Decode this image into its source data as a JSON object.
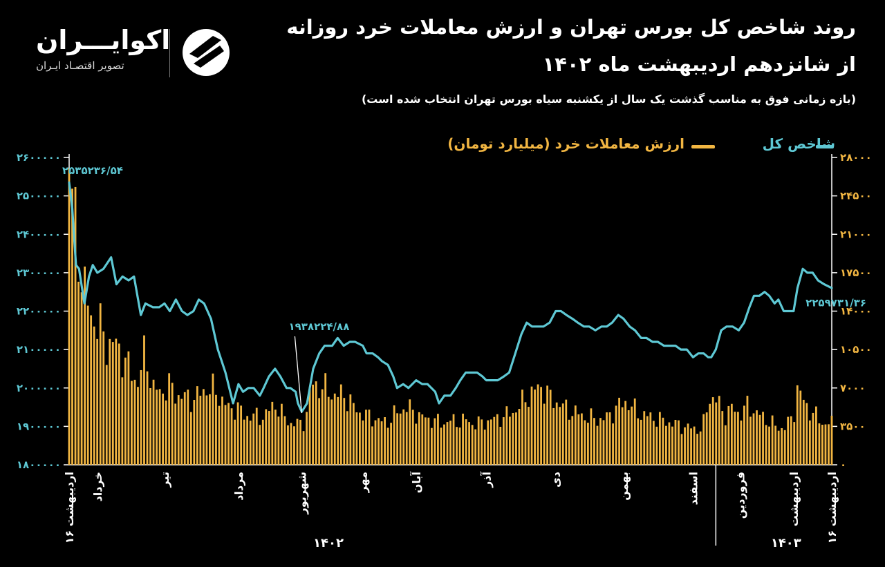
{
  "title_line1": "روند شاخص کل بورس تهران و ارزش معاملات خرد روزانه",
  "title_line2": "از شانزدهم اردیبهشت ماه ۱۴۰۲",
  "subtitle": "(بازه زمانی فوق به مناسب گذشت یک سال از یکشنبه سیاه بورس تهران انتخاب شده است)",
  "brand": {
    "name": "اکوایـــران",
    "tagline": "تصویر اقتصـاد ایـران",
    "logo_icon": "ecoiran-logo-icon"
  },
  "colors": {
    "index": "#5ec8d4",
    "volume": "#f2b642",
    "background": "#000000"
  },
  "chart_data": {
    "type": "bar+line",
    "legend": [
      {
        "name": "شاخص کل",
        "series": "index",
        "type": "line"
      },
      {
        "name": "ارزش معاملات خرد (میلیارد تومان)",
        "series": "volume",
        "type": "bar"
      }
    ],
    "left_axis": {
      "range": [
        1800000,
        2600000
      ],
      "ticks": [
        "1800000",
        "1900000",
        "2000000",
        "2100000",
        "2200000",
        "2300000",
        "2400000",
        "2500000",
        "2600000"
      ]
    },
    "right_axis": {
      "range": [
        0,
        28000
      ],
      "ticks": [
        "0",
        "3500",
        "7000",
        "10500",
        "14000",
        "17500",
        "21000",
        "24500",
        "28000"
      ]
    },
    "x_months": [
      {
        "label": "۱۶ اردیبهشت",
        "pos": 0.0
      },
      {
        "label": "خرداد",
        "pos": 0.037
      },
      {
        "label": "تیر",
        "pos": 0.125
      },
      {
        "label": "مرداد",
        "pos": 0.222
      },
      {
        "label": "شهریور",
        "pos": 0.305
      },
      {
        "label": "مهر",
        "pos": 0.385
      },
      {
        "label": "آبان",
        "pos": 0.455
      },
      {
        "label": "آذر",
        "pos": 0.547
      },
      {
        "label": "دی",
        "pos": 0.638
      },
      {
        "label": "بهمن",
        "pos": 0.727
      },
      {
        "label": "اسفند",
        "pos": 0.818
      },
      {
        "label": "فروردین",
        "pos": 0.88
      },
      {
        "label": "اردیبهشت",
        "pos": 0.95
      },
      {
        "label": "۱۶ اردیبهشت",
        "pos": 1.0
      }
    ],
    "year_labels": [
      {
        "label": "۱۴۰۲",
        "pos": 0.34
      },
      {
        "label": "۱۴۰۳",
        "pos": 0.94
      }
    ],
    "year_divider_pos": 0.848,
    "annotations": [
      {
        "label": "۲۵۳۵۲۳۶/۵۴",
        "series": "index",
        "pos": 0.0,
        "value": 2535236.54
      },
      {
        "label": "۱۹۳۸۲۲۴/۸۸",
        "series": "index",
        "pos": 0.305,
        "value": 1938224.88
      },
      {
        "label": "۲۲۵۹۷۳۱/۳۶",
        "series": "index",
        "pos": 1.0,
        "value": 2259731.36
      }
    ],
    "index_series": [
      [
        0.0,
        2535000
      ],
      [
        0.004,
        2470000
      ],
      [
        0.009,
        2320000
      ],
      [
        0.013,
        2310000
      ],
      [
        0.02,
        2220000
      ],
      [
        0.026,
        2290000
      ],
      [
        0.031,
        2320000
      ],
      [
        0.037,
        2300000
      ],
      [
        0.045,
        2310000
      ],
      [
        0.055,
        2340000
      ],
      [
        0.062,
        2270000
      ],
      [
        0.07,
        2290000
      ],
      [
        0.078,
        2280000
      ],
      [
        0.085,
        2290000
      ],
      [
        0.094,
        2190000
      ],
      [
        0.1,
        2220000
      ],
      [
        0.11,
        2210000
      ],
      [
        0.118,
        2210000
      ],
      [
        0.125,
        2220000
      ],
      [
        0.132,
        2200000
      ],
      [
        0.14,
        2230000
      ],
      [
        0.148,
        2200000
      ],
      [
        0.155,
        2190000
      ],
      [
        0.163,
        2200000
      ],
      [
        0.17,
        2230000
      ],
      [
        0.177,
        2220000
      ],
      [
        0.186,
        2180000
      ],
      [
        0.195,
        2100000
      ],
      [
        0.2,
        2070000
      ],
      [
        0.205,
        2040000
      ],
      [
        0.21,
        2000000
      ],
      [
        0.215,
        1960000
      ],
      [
        0.222,
        2010000
      ],
      [
        0.228,
        1990000
      ],
      [
        0.235,
        2000000
      ],
      [
        0.242,
        2000000
      ],
      [
        0.25,
        1980000
      ],
      [
        0.255,
        2000000
      ],
      [
        0.262,
        2030000
      ],
      [
        0.27,
        2050000
      ],
      [
        0.277,
        2030000
      ],
      [
        0.285,
        2000000
      ],
      [
        0.29,
        2000000
      ],
      [
        0.297,
        1990000
      ],
      [
        0.3,
        1960000
      ],
      [
        0.305,
        1938000
      ],
      [
        0.312,
        1960000
      ],
      [
        0.32,
        2050000
      ],
      [
        0.328,
        2090000
      ],
      [
        0.335,
        2110000
      ],
      [
        0.345,
        2110000
      ],
      [
        0.352,
        2130000
      ],
      [
        0.36,
        2110000
      ],
      [
        0.368,
        2120000
      ],
      [
        0.375,
        2120000
      ],
      [
        0.385,
        2110000
      ],
      [
        0.39,
        2090000
      ],
      [
        0.398,
        2090000
      ],
      [
        0.405,
        2080000
      ],
      [
        0.41,
        2070000
      ],
      [
        0.418,
        2060000
      ],
      [
        0.425,
        2030000
      ],
      [
        0.43,
        2000000
      ],
      [
        0.438,
        2010000
      ],
      [
        0.445,
        2000000
      ],
      [
        0.455,
        2020000
      ],
      [
        0.463,
        2010000
      ],
      [
        0.47,
        2010000
      ],
      [
        0.475,
        2000000
      ],
      [
        0.48,
        1990000
      ],
      [
        0.485,
        1960000
      ],
      [
        0.492,
        1980000
      ],
      [
        0.5,
        1980000
      ],
      [
        0.507,
        2000000
      ],
      [
        0.513,
        2020000
      ],
      [
        0.52,
        2040000
      ],
      [
        0.527,
        2040000
      ],
      [
        0.535,
        2040000
      ],
      [
        0.542,
        2030000
      ],
      [
        0.547,
        2020000
      ],
      [
        0.555,
        2020000
      ],
      [
        0.562,
        2020000
      ],
      [
        0.57,
        2030000
      ],
      [
        0.577,
        2040000
      ],
      [
        0.585,
        2090000
      ],
      [
        0.593,
        2140000
      ],
      [
        0.6,
        2170000
      ],
      [
        0.607,
        2160000
      ],
      [
        0.615,
        2160000
      ],
      [
        0.622,
        2160000
      ],
      [
        0.63,
        2170000
      ],
      [
        0.638,
        2200000
      ],
      [
        0.645,
        2200000
      ],
      [
        0.652,
        2190000
      ],
      [
        0.66,
        2180000
      ],
      [
        0.667,
        2170000
      ],
      [
        0.675,
        2160000
      ],
      [
        0.682,
        2160000
      ],
      [
        0.69,
        2150000
      ],
      [
        0.698,
        2160000
      ],
      [
        0.705,
        2160000
      ],
      [
        0.712,
        2170000
      ],
      [
        0.72,
        2190000
      ],
      [
        0.727,
        2180000
      ],
      [
        0.735,
        2160000
      ],
      [
        0.742,
        2150000
      ],
      [
        0.75,
        2130000
      ],
      [
        0.757,
        2130000
      ],
      [
        0.765,
        2120000
      ],
      [
        0.772,
        2120000
      ],
      [
        0.78,
        2110000
      ],
      [
        0.788,
        2110000
      ],
      [
        0.795,
        2110000
      ],
      [
        0.802,
        2100000
      ],
      [
        0.81,
        2100000
      ],
      [
        0.818,
        2080000
      ],
      [
        0.825,
        2090000
      ],
      [
        0.832,
        2090000
      ],
      [
        0.838,
        2080000
      ],
      [
        0.842,
        2080000
      ],
      [
        0.848,
        2100000
      ],
      [
        0.855,
        2150000
      ],
      [
        0.862,
        2160000
      ],
      [
        0.87,
        2160000
      ],
      [
        0.878,
        2150000
      ],
      [
        0.885,
        2170000
      ],
      [
        0.892,
        2210000
      ],
      [
        0.898,
        2240000
      ],
      [
        0.905,
        2240000
      ],
      [
        0.912,
        2250000
      ],
      [
        0.918,
        2240000
      ],
      [
        0.925,
        2220000
      ],
      [
        0.93,
        2230000
      ],
      [
        0.937,
        2200000
      ],
      [
        0.943,
        2200000
      ],
      [
        0.95,
        2200000
      ],
      [
        0.955,
        2260000
      ],
      [
        0.962,
        2310000
      ],
      [
        0.968,
        2300000
      ],
      [
        0.975,
        2300000
      ],
      [
        0.982,
        2280000
      ],
      [
        0.99,
        2270000
      ],
      [
        1.0,
        2260000
      ]
    ],
    "volume_series": [
      [
        0.0,
        27000
      ],
      [
        0.01,
        21000
      ],
      [
        0.02,
        15500
      ],
      [
        0.03,
        13500
      ],
      [
        0.04,
        12500
      ],
      [
        0.05,
        11000
      ],
      [
        0.06,
        11000
      ],
      [
        0.07,
        10000
      ],
      [
        0.08,
        8500
      ],
      [
        0.09,
        7500
      ],
      [
        0.1,
        10300
      ],
      [
        0.11,
        7000
      ],
      [
        0.12,
        6500
      ],
      [
        0.13,
        7300
      ],
      [
        0.14,
        6400
      ],
      [
        0.15,
        6200
      ],
      [
        0.16,
        6000
      ],
      [
        0.17,
        6300
      ],
      [
        0.18,
        7000
      ],
      [
        0.19,
        6800
      ],
      [
        0.2,
        6000
      ],
      [
        0.21,
        5000
      ],
      [
        0.22,
        5300
      ],
      [
        0.23,
        4400
      ],
      [
        0.24,
        4500
      ],
      [
        0.25,
        4300
      ],
      [
        0.26,
        4700
      ],
      [
        0.27,
        5600
      ],
      [
        0.28,
        4500
      ],
      [
        0.29,
        3800
      ],
      [
        0.3,
        3700
      ],
      [
        0.31,
        4000
      ],
      [
        0.315,
        6300
      ],
      [
        0.32,
        7500
      ],
      [
        0.33,
        7000
      ],
      [
        0.34,
        6800
      ],
      [
        0.35,
        6200
      ],
      [
        0.36,
        6500
      ],
      [
        0.37,
        5500
      ],
      [
        0.38,
        4800
      ],
      [
        0.39,
        4500
      ],
      [
        0.4,
        4200
      ],
      [
        0.41,
        3900
      ],
      [
        0.42,
        4000
      ],
      [
        0.43,
        4800
      ],
      [
        0.44,
        5200
      ],
      [
        0.45,
        5000
      ],
      [
        0.46,
        4400
      ],
      [
        0.47,
        4200
      ],
      [
        0.48,
        4000
      ],
      [
        0.49,
        3800
      ],
      [
        0.5,
        4000
      ],
      [
        0.51,
        3900
      ],
      [
        0.52,
        4100
      ],
      [
        0.53,
        3700
      ],
      [
        0.54,
        3800
      ],
      [
        0.55,
        4000
      ],
      [
        0.56,
        4200
      ],
      [
        0.57,
        4400
      ],
      [
        0.58,
        4700
      ],
      [
        0.59,
        5300
      ],
      [
        0.6,
        6200
      ],
      [
        0.61,
        6700
      ],
      [
        0.62,
        7200
      ],
      [
        0.63,
        6100
      ],
      [
        0.64,
        5700
      ],
      [
        0.65,
        5200
      ],
      [
        0.66,
        4800
      ],
      [
        0.67,
        4600
      ],
      [
        0.68,
        4300
      ],
      [
        0.69,
        4200
      ],
      [
        0.7,
        4100
      ],
      [
        0.71,
        4600
      ],
      [
        0.72,
        5300
      ],
      [
        0.73,
        5800
      ],
      [
        0.74,
        5100
      ],
      [
        0.75,
        4600
      ],
      [
        0.76,
        4400
      ],
      [
        0.77,
        4200
      ],
      [
        0.78,
        4000
      ],
      [
        0.79,
        3800
      ],
      [
        0.8,
        3600
      ],
      [
        0.81,
        3400
      ],
      [
        0.82,
        3300
      ],
      [
        0.83,
        3200
      ],
      [
        0.84,
        6200
      ],
      [
        0.85,
        5800
      ],
      [
        0.86,
        4500
      ],
      [
        0.87,
        5200
      ],
      [
        0.88,
        4600
      ],
      [
        0.89,
        5400
      ],
      [
        0.9,
        4800
      ],
      [
        0.91,
        4300
      ],
      [
        0.92,
        3900
      ],
      [
        0.93,
        3300
      ],
      [
        0.94,
        3500
      ],
      [
        0.95,
        4500
      ],
      [
        0.955,
        7000
      ],
      [
        0.96,
        6200
      ],
      [
        0.97,
        5000
      ],
      [
        0.98,
        4400
      ],
      [
        0.99,
        3700
      ],
      [
        1.0,
        3800
      ]
    ]
  }
}
